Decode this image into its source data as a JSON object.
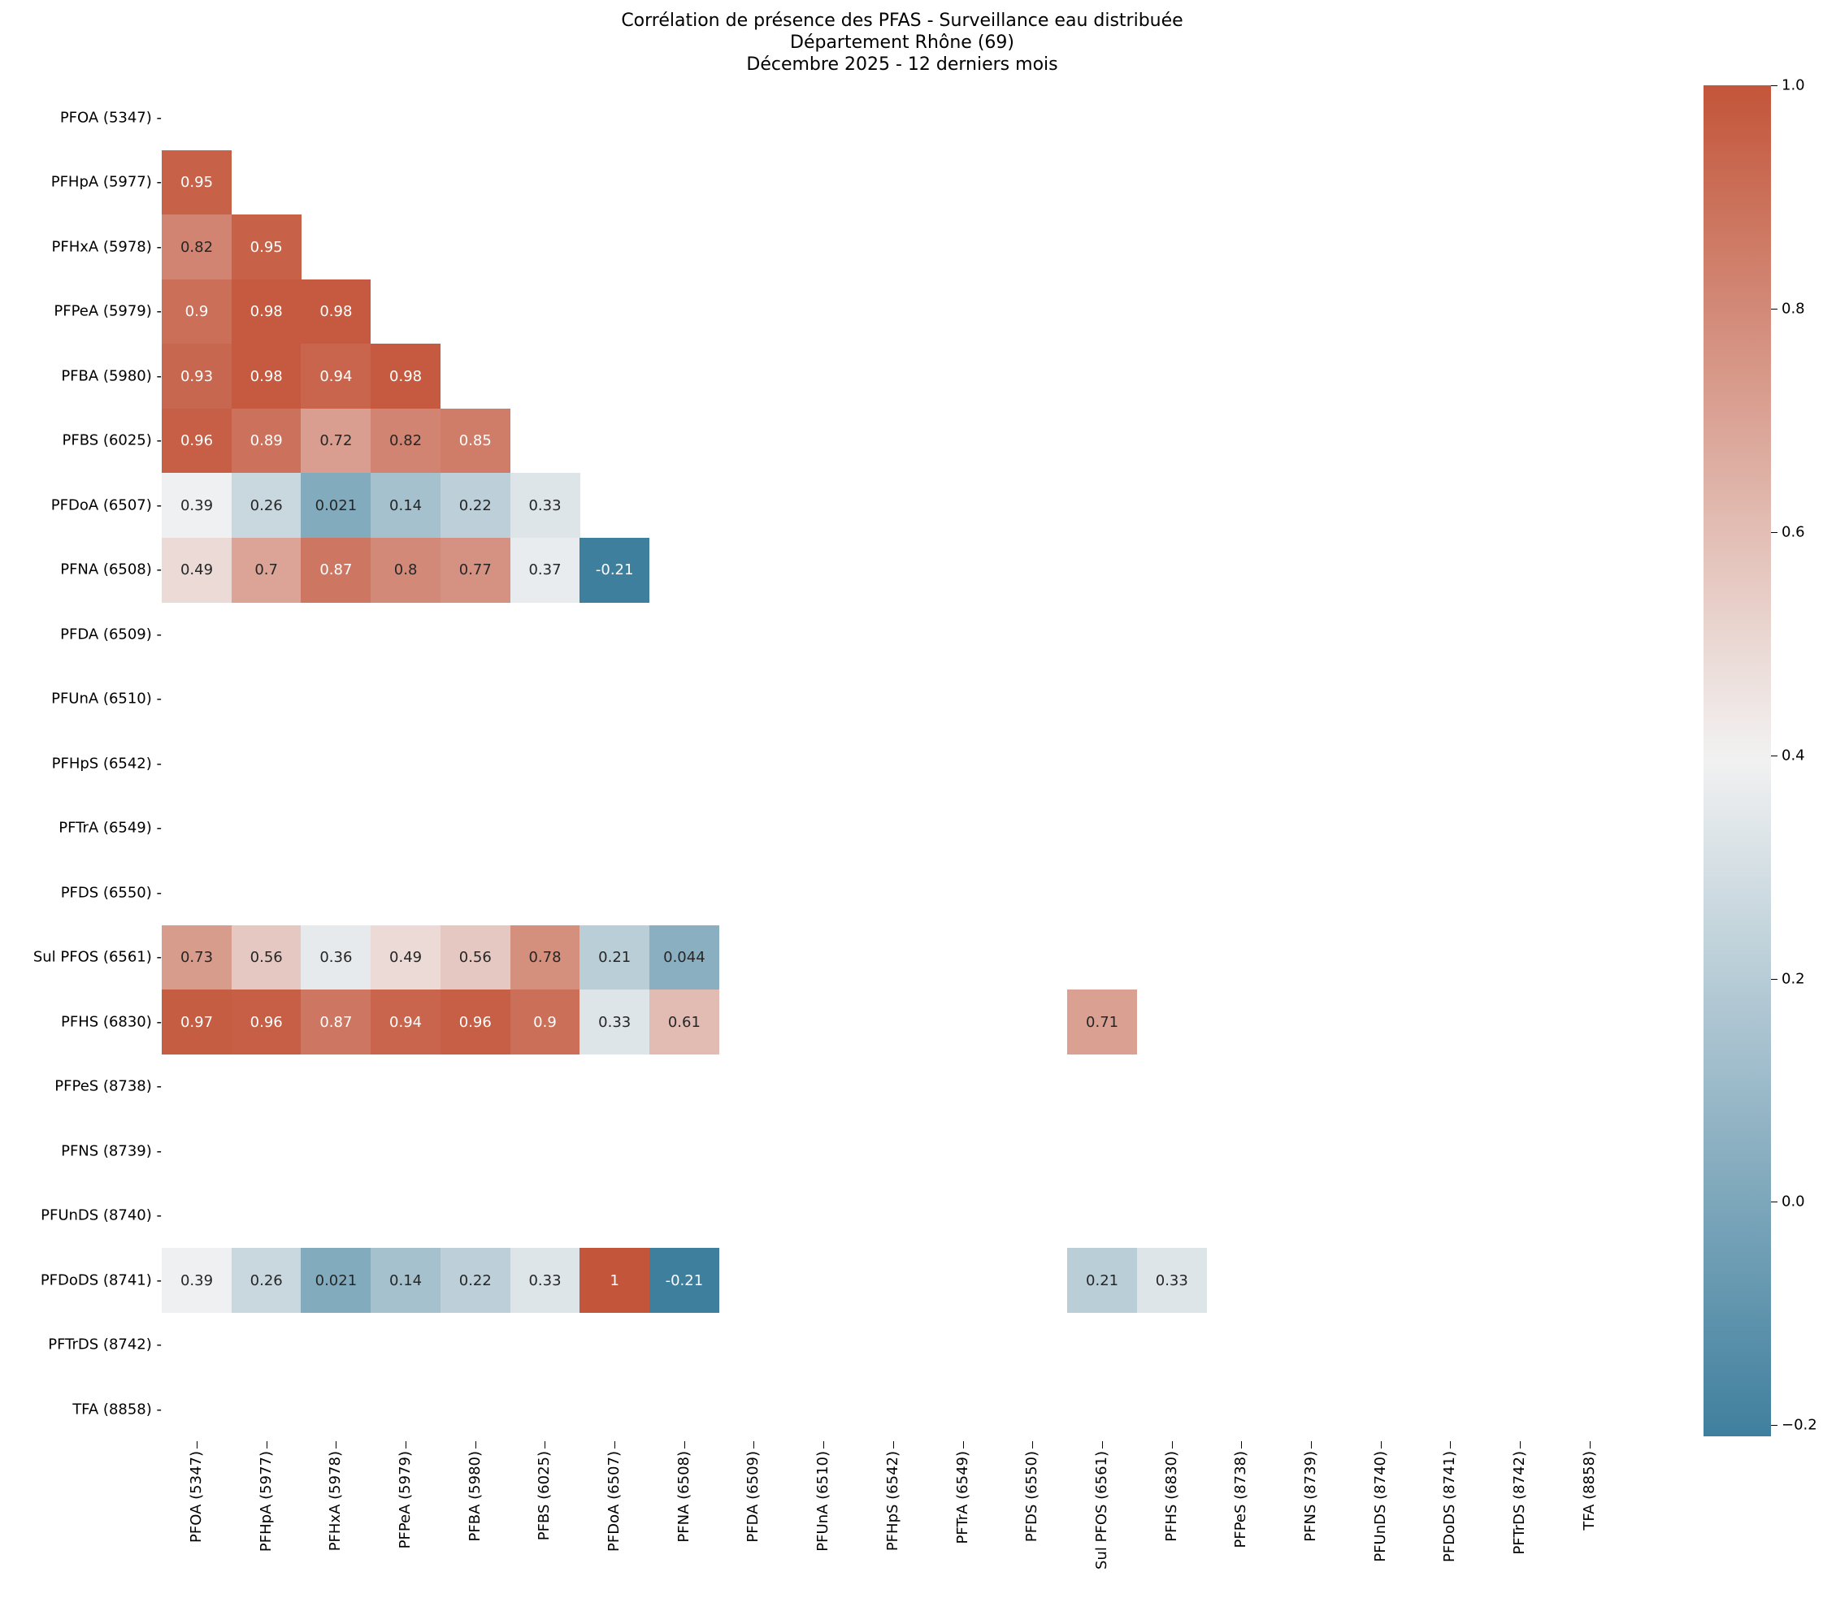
{
  "chart_data": {
    "type": "heatmap",
    "title": "Corrélation de présence des PFAS - Surveillance eau distribuée",
    "subtitle_lines": [
      "Département Rhône (69)",
      "Décembre 2025 - 12 derniers mois"
    ],
    "labels": [
      "PFOA (5347)",
      "PFHpA (5977)",
      "PFHxA (5978)",
      "PFPeA (5979)",
      "PFBA (5980)",
      "PFBS (6025)",
      "PFDoA (6507)",
      "PFNA (6508)",
      "PFDA (6509)",
      "PFUnA (6510)",
      "PFHpS (6542)",
      "PFTrA (6549)",
      "PFDS (6550)",
      "Sul PFOS (6561)",
      "PFHS (6830)",
      "PFPeS (8738)",
      "PFNS (8739)",
      "PFUnDS (8740)",
      "PFDoDS (8741)",
      "PFTrDS (8742)",
      "TFA (8858)"
    ],
    "mask": "upper triangle incl. diagonal; rows/cols without data are blank",
    "cells": [
      {
        "row": 1,
        "col": 0,
        "value": 0.95,
        "text": "0.95"
      },
      {
        "row": 2,
        "col": 0,
        "value": 0.82,
        "text": "0.82"
      },
      {
        "row": 2,
        "col": 1,
        "value": 0.95,
        "text": "0.95"
      },
      {
        "row": 3,
        "col": 0,
        "value": 0.9,
        "text": "0.9"
      },
      {
        "row": 3,
        "col": 1,
        "value": 0.98,
        "text": "0.98"
      },
      {
        "row": 3,
        "col": 2,
        "value": 0.98,
        "text": "0.98"
      },
      {
        "row": 4,
        "col": 0,
        "value": 0.93,
        "text": "0.93"
      },
      {
        "row": 4,
        "col": 1,
        "value": 0.98,
        "text": "0.98"
      },
      {
        "row": 4,
        "col": 2,
        "value": 0.94,
        "text": "0.94"
      },
      {
        "row": 4,
        "col": 3,
        "value": 0.98,
        "text": "0.98"
      },
      {
        "row": 5,
        "col": 0,
        "value": 0.96,
        "text": "0.96"
      },
      {
        "row": 5,
        "col": 1,
        "value": 0.89,
        "text": "0.89"
      },
      {
        "row": 5,
        "col": 2,
        "value": 0.72,
        "text": "0.72"
      },
      {
        "row": 5,
        "col": 3,
        "value": 0.82,
        "text": "0.82"
      },
      {
        "row": 5,
        "col": 4,
        "value": 0.85,
        "text": "0.85"
      },
      {
        "row": 6,
        "col": 0,
        "value": 0.39,
        "text": "0.39"
      },
      {
        "row": 6,
        "col": 1,
        "value": 0.26,
        "text": "0.26"
      },
      {
        "row": 6,
        "col": 2,
        "value": 0.021,
        "text": "0.021"
      },
      {
        "row": 6,
        "col": 3,
        "value": 0.14,
        "text": "0.14"
      },
      {
        "row": 6,
        "col": 4,
        "value": 0.22,
        "text": "0.22"
      },
      {
        "row": 6,
        "col": 5,
        "value": 0.33,
        "text": "0.33"
      },
      {
        "row": 7,
        "col": 0,
        "value": 0.49,
        "text": "0.49"
      },
      {
        "row": 7,
        "col": 1,
        "value": 0.7,
        "text": "0.7"
      },
      {
        "row": 7,
        "col": 2,
        "value": 0.87,
        "text": "0.87"
      },
      {
        "row": 7,
        "col": 3,
        "value": 0.8,
        "text": "0.8"
      },
      {
        "row": 7,
        "col": 4,
        "value": 0.77,
        "text": "0.77"
      },
      {
        "row": 7,
        "col": 5,
        "value": 0.37,
        "text": "0.37"
      },
      {
        "row": 7,
        "col": 6,
        "value": -0.21,
        "text": "-0.21"
      },
      {
        "row": 13,
        "col": 0,
        "value": 0.73,
        "text": "0.73"
      },
      {
        "row": 13,
        "col": 1,
        "value": 0.56,
        "text": "0.56"
      },
      {
        "row": 13,
        "col": 2,
        "value": 0.36,
        "text": "0.36"
      },
      {
        "row": 13,
        "col": 3,
        "value": 0.49,
        "text": "0.49"
      },
      {
        "row": 13,
        "col": 4,
        "value": 0.56,
        "text": "0.56"
      },
      {
        "row": 13,
        "col": 5,
        "value": 0.78,
        "text": "0.78"
      },
      {
        "row": 13,
        "col": 6,
        "value": 0.21,
        "text": "0.21"
      },
      {
        "row": 13,
        "col": 7,
        "value": 0.044,
        "text": "0.044"
      },
      {
        "row": 14,
        "col": 0,
        "value": 0.97,
        "text": "0.97"
      },
      {
        "row": 14,
        "col": 1,
        "value": 0.96,
        "text": "0.96"
      },
      {
        "row": 14,
        "col": 2,
        "value": 0.87,
        "text": "0.87"
      },
      {
        "row": 14,
        "col": 3,
        "value": 0.94,
        "text": "0.94"
      },
      {
        "row": 14,
        "col": 4,
        "value": 0.96,
        "text": "0.96"
      },
      {
        "row": 14,
        "col": 5,
        "value": 0.9,
        "text": "0.9"
      },
      {
        "row": 14,
        "col": 6,
        "value": 0.33,
        "text": "0.33"
      },
      {
        "row": 14,
        "col": 7,
        "value": 0.61,
        "text": "0.61"
      },
      {
        "row": 14,
        "col": 13,
        "value": 0.71,
        "text": "0.71"
      },
      {
        "row": 18,
        "col": 0,
        "value": 0.39,
        "text": "0.39"
      },
      {
        "row": 18,
        "col": 1,
        "value": 0.26,
        "text": "0.26"
      },
      {
        "row": 18,
        "col": 2,
        "value": 0.021,
        "text": "0.021"
      },
      {
        "row": 18,
        "col": 3,
        "value": 0.14,
        "text": "0.14"
      },
      {
        "row": 18,
        "col": 4,
        "value": 0.22,
        "text": "0.22"
      },
      {
        "row": 18,
        "col": 5,
        "value": 0.33,
        "text": "0.33"
      },
      {
        "row": 18,
        "col": 6,
        "value": 1,
        "text": "1"
      },
      {
        "row": 18,
        "col": 7,
        "value": -0.21,
        "text": "-0.21"
      },
      {
        "row": 18,
        "col": 13,
        "value": 0.21,
        "text": "0.21"
      },
      {
        "row": 18,
        "col": 14,
        "value": 0.33,
        "text": "0.33"
      }
    ],
    "colorbar": {
      "vmin": -0.21,
      "vmax": 1.0,
      "center": 0.4,
      "ticks": [
        1.0,
        0.8,
        0.6,
        0.4,
        0.2,
        0.0,
        -0.2
      ],
      "tick_labels": [
        "1.0",
        "0.8",
        "0.6",
        "0.4",
        "0.2",
        "0.0",
        "−0.2"
      ],
      "colors": {
        "low": "#3f7f9e",
        "mid": "#f2f2f2",
        "high": "#c3553a"
      }
    },
    "xlabel": "",
    "ylabel": "",
    "grid": false
  }
}
